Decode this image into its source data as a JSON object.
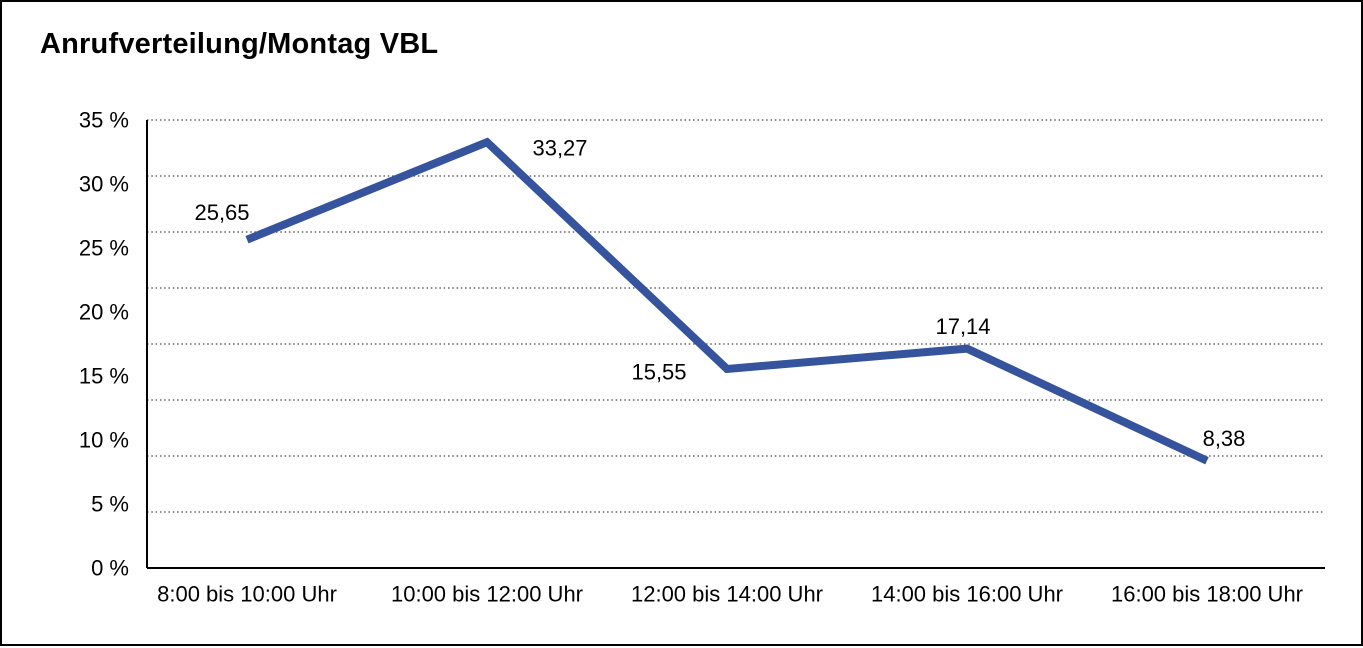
{
  "window": {
    "title": "Anrufverteilung/Montag VBL"
  },
  "chart_data": {
    "type": "line",
    "title": "Anrufverteilung/Montag VBL",
    "categories": [
      "8:00 bis 10:00 Uhr",
      "10:00 bis 12:00 Uhr",
      "12:00 bis 14:00 Uhr",
      "14:00 bis 16:00 Uhr",
      "16:00 bis 18:00 Uhr"
    ],
    "values": [
      25.65,
      33.27,
      15.55,
      17.14,
      8.38
    ],
    "value_labels": [
      "25,65",
      "33,27",
      "15,55",
      "17,14",
      "8,38"
    ],
    "series_name": "Anrufverteilung Montag VBL",
    "xlabel": "",
    "ylabel": "",
    "ylim": [
      0,
      35
    ],
    "y_tick_labels": [
      "35 %",
      "30 %",
      "25 %",
      "20 %",
      "15 %",
      "10 %",
      "5 %",
      "0 %"
    ],
    "grid": "dotted horizontal gridlines",
    "legend_position": "none",
    "line_color": "#35549D",
    "axis_color": "#000000",
    "gridline_color": "#444444",
    "label_color": "#000000",
    "background_color": "#ffffff"
  }
}
